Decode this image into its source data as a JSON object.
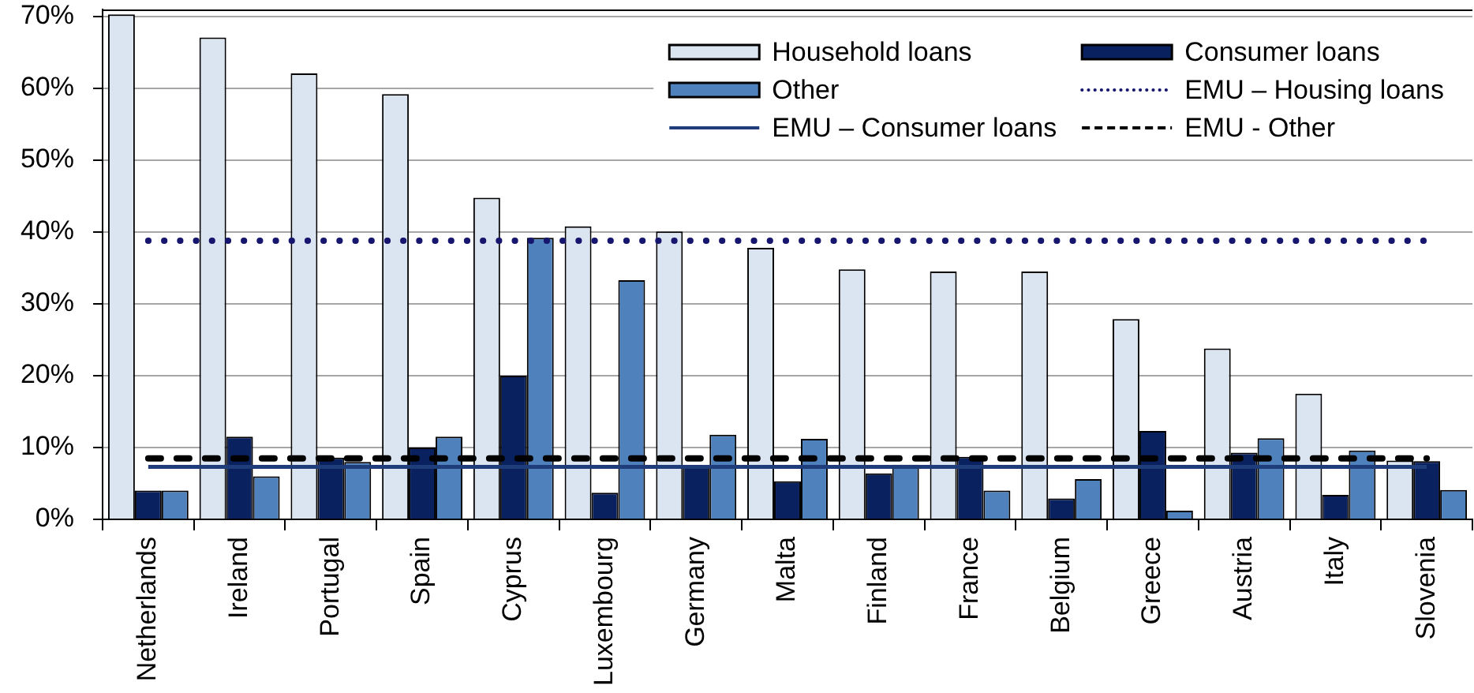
{
  "chart_data": {
    "type": "bar",
    "categories": [
      "Netherlands",
      "Ireland",
      "Portugal",
      "Spain",
      "Cyprus",
      "Luxembourg",
      "Germany",
      "Malta",
      "Finland",
      "France",
      "Belgium",
      "Greece",
      "Austria",
      "Italy",
      "Slovenia"
    ],
    "series": [
      {
        "name": "Household loans",
        "color": "#dbe5f1",
        "values": [
          70.3,
          67.1,
          62.1,
          59.2,
          44.8,
          40.8,
          40.1,
          37.8,
          34.8,
          34.5,
          34.5,
          27.9,
          23.8,
          17.5,
          8.2
        ]
      },
      {
        "name": "Consumer loans",
        "color": "#0a2160",
        "values": [
          4.0,
          11.5,
          8.6,
          10.0,
          20.0,
          3.7,
          7.5,
          5.3,
          6.4,
          8.7,
          2.9,
          12.3,
          9.3,
          3.4,
          8.1
        ]
      },
      {
        "name": "Other",
        "color": "#4f81bd",
        "values": [
          4.0,
          6.0,
          8.0,
          11.5,
          39.2,
          33.3,
          11.8,
          11.2,
          7.6,
          4.0,
          5.6,
          1.2,
          11.3,
          9.6,
          4.1
        ]
      },
      {
        "name": "EMU – Housing loans",
        "type": "line",
        "line_style": "dotted",
        "color": "#16166e",
        "values": [
          38.8,
          38.8,
          38.8,
          38.8,
          38.8,
          38.8,
          38.8,
          38.8,
          38.8,
          38.8,
          38.8,
          38.8,
          38.8,
          38.8,
          38.8
        ]
      },
      {
        "name": "EMU – Consumer loans",
        "type": "line",
        "line_style": "solid",
        "color": "#1f3d7a",
        "values": [
          7.3,
          7.3,
          7.3,
          7.3,
          7.3,
          7.3,
          7.3,
          7.3,
          7.3,
          7.3,
          7.3,
          7.3,
          7.3,
          7.3,
          7.3
        ]
      },
      {
        "name": "EMU - Other",
        "type": "line",
        "line_style": "dashed",
        "color": "#000000",
        "values": [
          8.5,
          8.5,
          8.5,
          8.5,
          8.5,
          8.5,
          8.5,
          8.5,
          8.5,
          8.5,
          8.5,
          8.5,
          8.5,
          8.5,
          8.5
        ]
      }
    ],
    "ylim": [
      0,
      71
    ],
    "yticks": [
      {
        "value": 0,
        "label": "0%"
      },
      {
        "value": 10,
        "label": "10%"
      },
      {
        "value": 20,
        "label": "20%"
      },
      {
        "value": 30,
        "label": "30%"
      },
      {
        "value": 40,
        "label": "40%"
      },
      {
        "value": 50,
        "label": "50%"
      },
      {
        "value": 60,
        "label": "60%"
      },
      {
        "value": 70,
        "label": "70%"
      }
    ],
    "grid": "y",
    "legend": "top right",
    "marker": "none"
  }
}
